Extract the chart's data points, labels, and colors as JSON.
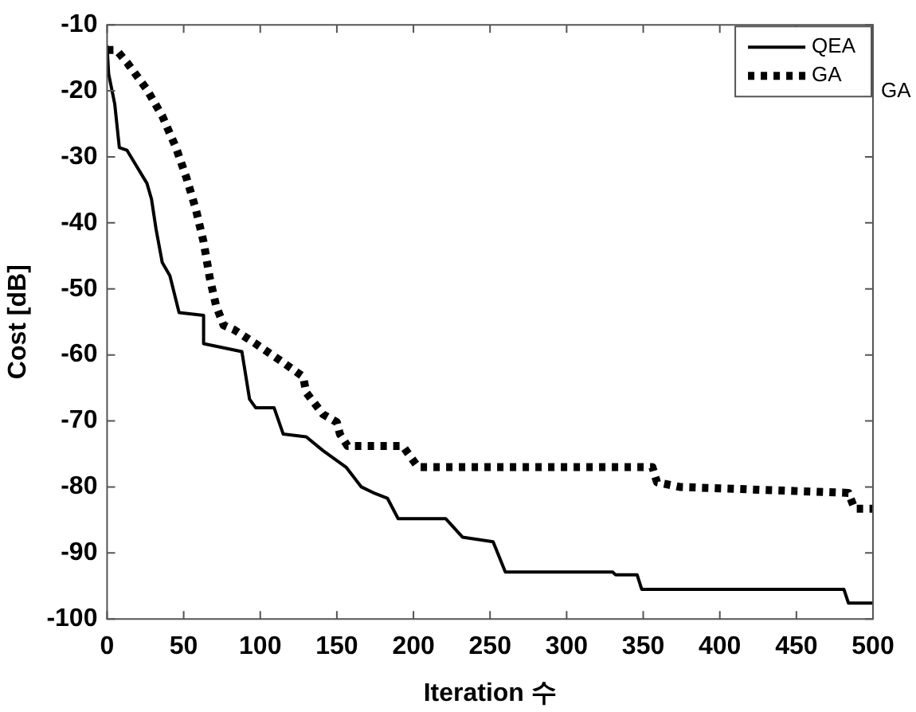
{
  "chart_data": {
    "type": "line",
    "xlabel": "Iteration 수",
    "ylabel": "Cost [dB]",
    "xlim": [
      0,
      500
    ],
    "xticks": [
      0,
      50,
      100,
      150,
      200,
      250,
      300,
      350,
      400,
      450,
      500
    ],
    "ylim": [
      -100,
      -10
    ],
    "yticks": [
      -100,
      -90,
      -80,
      -70,
      -60,
      -50,
      -40,
      -30,
      -20,
      -10
    ],
    "grid": false,
    "legend": "top right",
    "marker": "none",
    "annotations": [
      "GA"
    ],
    "series": [
      {
        "name": "QEA",
        "color": "#000000",
        "line_style": "solid",
        "x": [
          0,
          1,
          5,
          8,
          13,
          26,
          29,
          32,
          36,
          41,
          47,
          63,
          63,
          88,
          93,
          97,
          109,
          115,
          130,
          141,
          156,
          166,
          175,
          183,
          190,
          221,
          232,
          252,
          260,
          330,
          332,
          346,
          349,
          481,
          484,
          500
        ],
        "values": [
          -13.3,
          -17.4,
          -22,
          -28.6,
          -29,
          -34,
          -36.4,
          -41,
          -46,
          -48,
          -53.6,
          -54,
          -58.3,
          -59.5,
          -66.7,
          -68,
          -68,
          -72,
          -72.4,
          -74.5,
          -77,
          -80,
          -81,
          -81.7,
          -84.8,
          -84.8,
          -87.6,
          -88.3,
          -92.9,
          -92.9,
          -93.3,
          -93.3,
          -95.5,
          -95.5,
          -97.6,
          -97.6
        ]
      },
      {
        "name": "GA",
        "color": "#000000",
        "line_style": "dotted",
        "x": [
          0,
          6,
          13,
          26,
          36,
          45,
          52,
          58,
          63,
          67,
          71,
          76,
          83,
          97,
          114,
          128,
          130,
          141,
          150,
          152,
          157,
          193,
          203,
          249,
          356,
          359,
          374,
          484,
          488,
          500
        ],
        "values": [
          -13.8,
          -13.8,
          -15.7,
          -19.8,
          -23.8,
          -28.6,
          -33.3,
          -38,
          -42.9,
          -48.3,
          -52.4,
          -55.5,
          -56.2,
          -58.3,
          -61,
          -63.3,
          -65.7,
          -69,
          -70.2,
          -72,
          -73.8,
          -73.8,
          -77,
          -77,
          -77,
          -79.3,
          -80,
          -80.9,
          -83.3,
          -83.3
        ]
      }
    ]
  }
}
